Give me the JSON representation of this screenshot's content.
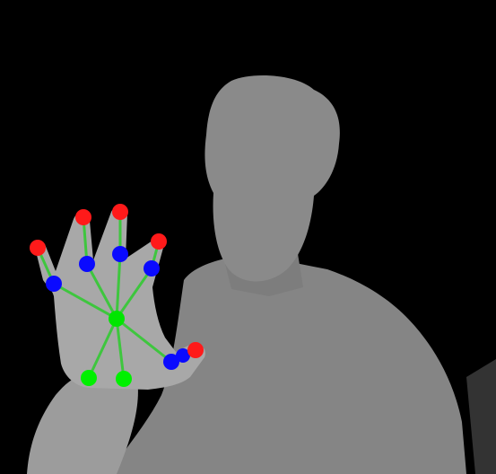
{
  "scene": {
    "description_type": "depth-map-hand-tracking",
    "colors": {
      "background": "#000000",
      "person": "#858585",
      "person_far": "#7a7a7a",
      "hand": "#a3a3a3",
      "arm": "#9c9c9c",
      "bone": "#3ec63e",
      "palm_joint": "#00e600",
      "base_joint": "#00f000",
      "mid_joint": "#0a0aff",
      "tip_joint": "#ff1a1a",
      "noise_right": "#3a3a3a"
    }
  },
  "skeleton": {
    "joints": [
      {
        "id": "palm",
        "role": "palm-center"
      },
      {
        "id": "base-left",
        "role": "wrist-base"
      },
      {
        "id": "base-right",
        "role": "wrist-base"
      },
      {
        "id": "pinky-mid",
        "role": "finger-mid"
      },
      {
        "id": "ring-mid",
        "role": "finger-mid"
      },
      {
        "id": "middle-mid",
        "role": "finger-mid"
      },
      {
        "id": "index-mid",
        "role": "finger-mid"
      },
      {
        "id": "thumb-mid",
        "role": "finger-mid"
      },
      {
        "id": "thumb-mid2",
        "role": "finger-mid"
      },
      {
        "id": "pinky-tip",
        "role": "finger-tip"
      },
      {
        "id": "ring-tip",
        "role": "finger-tip"
      },
      {
        "id": "middle-tip",
        "role": "finger-tip"
      },
      {
        "id": "index-tip",
        "role": "finger-tip"
      },
      {
        "id": "thumb-tip",
        "role": "finger-tip"
      }
    ]
  }
}
